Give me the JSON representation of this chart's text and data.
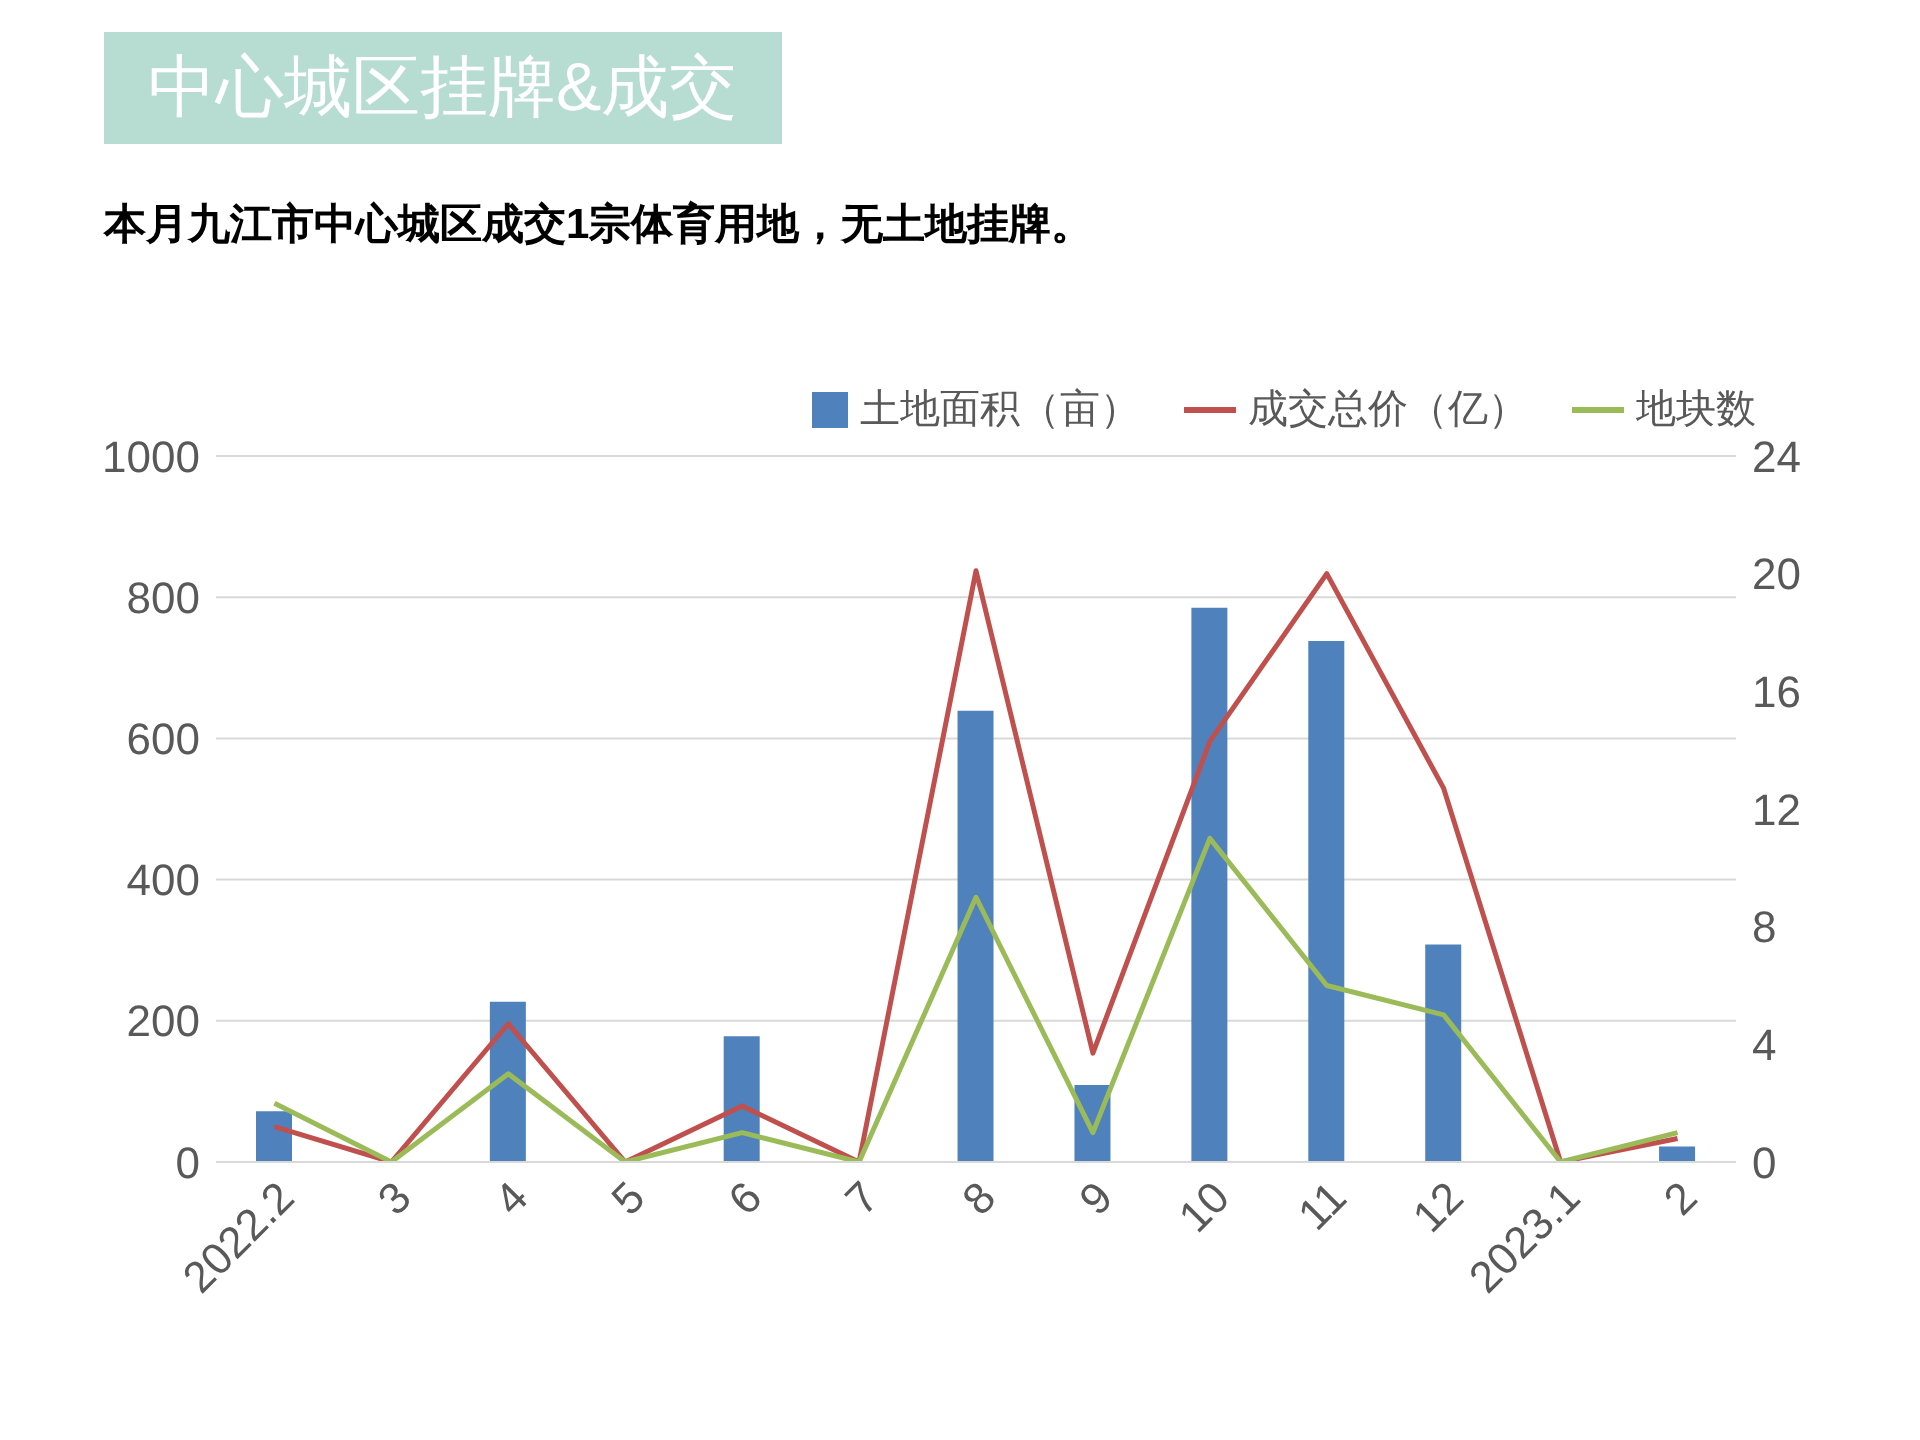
{
  "chart_data": {
    "type": "bar",
    "title": "中心城区挂牌&成交",
    "subtitle": "本月九江市中心城区成交1宗体育用地，无土地挂牌。",
    "categories": [
      "2022.2",
      "3",
      "4",
      "5",
      "6",
      "7",
      "8",
      "9",
      "10",
      "11",
      "12",
      "2023.1",
      "2"
    ],
    "series": [
      {
        "name": "土地面积（亩）",
        "color": "#4f81bd",
        "values": [
          72,
          0,
          227,
          0,
          178,
          0,
          639,
          109,
          785,
          738,
          308,
          0,
          22
        ]
      },
      {
        "name": "成交总价（亿）",
        "type": "line",
        "axis": "y2",
        "color": "#c0504d",
        "values": [
          1.2,
          0,
          4.7,
          0,
          1.9,
          0,
          20.1,
          3.7,
          14.3,
          20.0,
          12.7,
          0,
          0.8
        ]
      },
      {
        "name": "地块数",
        "type": "line",
        "axis": "y2",
        "color": "#9bbb59",
        "values": [
          2,
          0,
          3,
          0,
          1,
          0,
          9,
          1,
          11,
          6,
          5,
          0,
          1
        ]
      }
    ],
    "ylim": [
      0,
      1000
    ],
    "yticks": [
      0,
      200,
      400,
      600,
      800,
      1000
    ],
    "y2lim": [
      0,
      24
    ],
    "y2ticks": [
      0,
      4,
      8,
      12,
      16,
      20,
      24
    ],
    "grid": "y",
    "legend": "top right",
    "marker": "none"
  }
}
